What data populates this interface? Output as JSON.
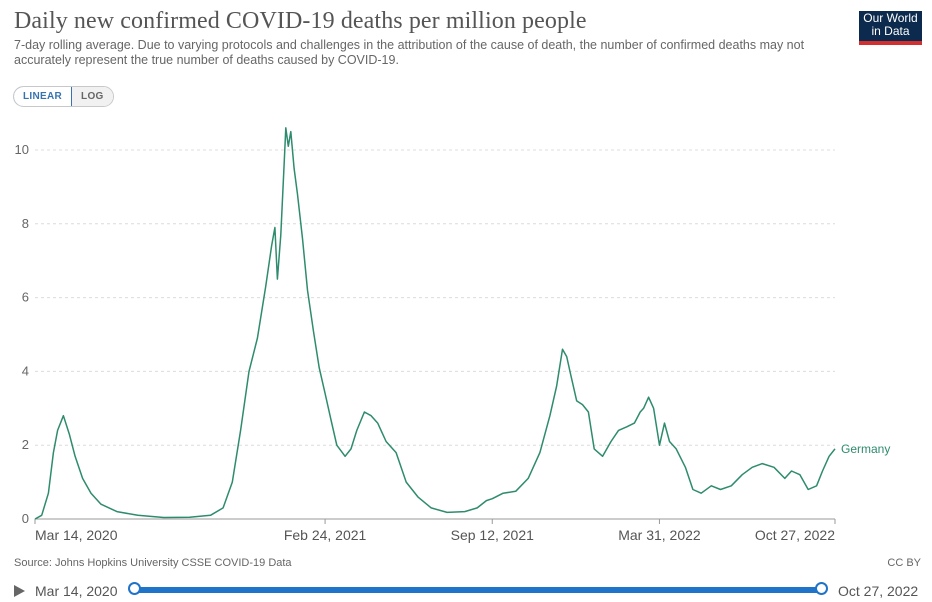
{
  "header": {
    "title": "Daily new confirmed COVID-19 deaths per million people",
    "subtitle": "7-day rolling average. Due to varying protocols and challenges in the attribution of the cause of death, the number of confirmed deaths may not accurately represent the true number of deaths caused by COVID-19.",
    "logo_line1": "Our World",
    "logo_line2": "in Data"
  },
  "scale_toggle": {
    "linear_label": "LINEAR",
    "log_label": "LOG",
    "selected": "LINEAR"
  },
  "footer": {
    "source": "Source: Johns Hopkins University CSSE COVID-19 Data",
    "license": "CC BY"
  },
  "timeline": {
    "start_label": "Mar 14, 2020",
    "end_label": "Oct 27, 2022"
  },
  "colors": {
    "series": "#2e8b6e",
    "accent": "#1f73c8",
    "logo_bg": "#0c2a4d",
    "logo_stripe": "#d32f2f"
  },
  "chart_data": {
    "type": "line",
    "ylim": [
      0,
      10.7
    ],
    "yticks": [
      0,
      2,
      4,
      6,
      8,
      10
    ],
    "xlim": [
      "2020-03-14",
      "2022-10-27"
    ],
    "xticks": [
      "Mar 14, 2020",
      "Feb 24, 2021",
      "Sep 12, 2021",
      "Mar 31, 2022",
      "Oct 27, 2022"
    ],
    "xtick_dates": [
      "2020-03-14",
      "2021-02-24",
      "2021-09-12",
      "2022-03-31",
      "2022-10-27"
    ],
    "grid": "horizontal",
    "series": [
      {
        "name": "Germany",
        "points": [
          [
            "2020-03-14",
            0.0
          ],
          [
            "2020-03-22",
            0.1
          ],
          [
            "2020-03-30",
            0.7
          ],
          [
            "2020-04-05",
            1.8
          ],
          [
            "2020-04-10",
            2.4
          ],
          [
            "2020-04-17",
            2.8
          ],
          [
            "2020-04-24",
            2.3
          ],
          [
            "2020-05-01",
            1.7
          ],
          [
            "2020-05-10",
            1.1
          ],
          [
            "2020-05-20",
            0.7
          ],
          [
            "2020-06-01",
            0.4
          ],
          [
            "2020-06-20",
            0.2
          ],
          [
            "2020-07-15",
            0.1
          ],
          [
            "2020-08-15",
            0.04
          ],
          [
            "2020-09-15",
            0.05
          ],
          [
            "2020-10-10",
            0.1
          ],
          [
            "2020-10-25",
            0.3
          ],
          [
            "2020-11-05",
            1.0
          ],
          [
            "2020-11-15",
            2.4
          ],
          [
            "2020-11-25",
            4.0
          ],
          [
            "2020-12-05",
            4.9
          ],
          [
            "2020-12-15",
            6.3
          ],
          [
            "2020-12-22",
            7.4
          ],
          [
            "2020-12-26",
            7.9
          ],
          [
            "2020-12-29",
            6.5
          ],
          [
            "2021-01-02",
            7.7
          ],
          [
            "2021-01-06",
            9.6
          ],
          [
            "2021-01-08",
            10.6
          ],
          [
            "2021-01-11",
            10.1
          ],
          [
            "2021-01-14",
            10.5
          ],
          [
            "2021-01-18",
            9.5
          ],
          [
            "2021-01-22",
            8.8
          ],
          [
            "2021-01-28",
            7.6
          ],
          [
            "2021-02-03",
            6.2
          ],
          [
            "2021-02-10",
            5.1
          ],
          [
            "2021-02-17",
            4.1
          ],
          [
            "2021-02-24",
            3.4
          ],
          [
            "2021-03-03",
            2.7
          ],
          [
            "2021-03-10",
            2.0
          ],
          [
            "2021-03-20",
            1.7
          ],
          [
            "2021-03-27",
            1.9
          ],
          [
            "2021-04-03",
            2.4
          ],
          [
            "2021-04-12",
            2.9
          ],
          [
            "2021-04-20",
            2.8
          ],
          [
            "2021-04-28",
            2.6
          ],
          [
            "2021-05-08",
            2.1
          ],
          [
            "2021-05-20",
            1.8
          ],
          [
            "2021-06-01",
            1.0
          ],
          [
            "2021-06-15",
            0.6
          ],
          [
            "2021-07-01",
            0.3
          ],
          [
            "2021-07-20",
            0.18
          ],
          [
            "2021-08-10",
            0.2
          ],
          [
            "2021-08-25",
            0.3
          ],
          [
            "2021-09-05",
            0.5
          ],
          [
            "2021-09-12",
            0.55
          ],
          [
            "2021-09-25",
            0.7
          ],
          [
            "2021-10-10",
            0.75
          ],
          [
            "2021-10-25",
            1.1
          ],
          [
            "2021-11-08",
            1.8
          ],
          [
            "2021-11-20",
            2.8
          ],
          [
            "2021-11-28",
            3.6
          ],
          [
            "2021-12-05",
            4.6
          ],
          [
            "2021-12-10",
            4.4
          ],
          [
            "2021-12-15",
            3.9
          ],
          [
            "2021-12-22",
            3.2
          ],
          [
            "2021-12-29",
            3.1
          ],
          [
            "2022-01-05",
            2.9
          ],
          [
            "2022-01-12",
            1.9
          ],
          [
            "2022-01-22",
            1.7
          ],
          [
            "2022-02-01",
            2.1
          ],
          [
            "2022-02-10",
            2.4
          ],
          [
            "2022-02-20",
            2.5
          ],
          [
            "2022-03-01",
            2.6
          ],
          [
            "2022-03-08",
            2.9
          ],
          [
            "2022-03-12",
            3.0
          ],
          [
            "2022-03-18",
            3.3
          ],
          [
            "2022-03-24",
            3.0
          ],
          [
            "2022-03-31",
            2.0
          ],
          [
            "2022-04-06",
            2.6
          ],
          [
            "2022-04-12",
            2.1
          ],
          [
            "2022-04-20",
            1.9
          ],
          [
            "2022-05-01",
            1.4
          ],
          [
            "2022-05-10",
            0.8
          ],
          [
            "2022-05-20",
            0.7
          ],
          [
            "2022-06-01",
            0.9
          ],
          [
            "2022-06-12",
            0.8
          ],
          [
            "2022-06-25",
            0.9
          ],
          [
            "2022-07-08",
            1.2
          ],
          [
            "2022-07-20",
            1.4
          ],
          [
            "2022-08-01",
            1.5
          ],
          [
            "2022-08-15",
            1.4
          ],
          [
            "2022-08-28",
            1.1
          ],
          [
            "2022-09-05",
            1.3
          ],
          [
            "2022-09-15",
            1.2
          ],
          [
            "2022-09-25",
            0.8
          ],
          [
            "2022-10-05",
            0.9
          ],
          [
            "2022-10-12",
            1.3
          ],
          [
            "2022-10-20",
            1.7
          ],
          [
            "2022-10-27",
            1.9
          ]
        ]
      }
    ]
  }
}
